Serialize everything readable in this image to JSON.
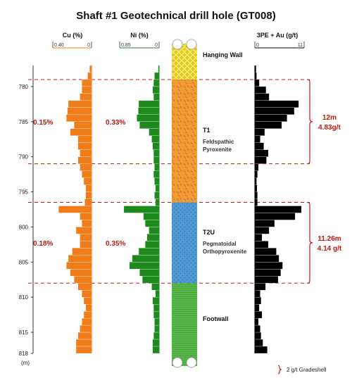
{
  "title": "Shaft #1 Geotechnical drill hole (GT008)",
  "depth_unit": "(m)",
  "colors": {
    "cu": "#f07d1a",
    "ni": "#1e8a1e",
    "pge": "#000000",
    "grade": "#c0190f",
    "t1": "#f29a36",
    "t2u": "#4f97d2",
    "footwall": "#58b94a",
    "hanging_wall": "#f3e14a"
  },
  "chart_data": {
    "type": "bar",
    "orientation": "horizontal",
    "depth_range": [
      777,
      818
    ],
    "depth_ticks": [
      780,
      785,
      790,
      795,
      800,
      805,
      810,
      815,
      818
    ],
    "depth": [
      777,
      778,
      779,
      780,
      781,
      782,
      783,
      784,
      785,
      786,
      787,
      788,
      789,
      790,
      791,
      792,
      793,
      794,
      795,
      796,
      797,
      798,
      799,
      800,
      801,
      802,
      803,
      804,
      805,
      806,
      807,
      808,
      809,
      810,
      811,
      812,
      813,
      814,
      815,
      816,
      817
    ],
    "series": [
      {
        "name": "Cu (%)",
        "range": [
          0.4,
          0
        ],
        "range_labels": [
          "0.40",
          "0"
        ],
        "values": [
          0.02,
          0.04,
          0.1,
          0.1,
          0.12,
          0.24,
          0.25,
          0.26,
          0.18,
          0.22,
          0.14,
          0.14,
          0.12,
          0.14,
          0.12,
          0.1,
          0.08,
          0.06,
          0.06,
          0.07,
          0.34,
          0.12,
          0.1,
          0.16,
          0.12,
          0.12,
          0.2,
          0.24,
          0.26,
          0.22,
          0.18,
          0.14,
          0.1,
          0.08,
          0.06,
          0.08,
          0.1,
          0.12,
          0.14,
          0.16,
          0.16
        ]
      },
      {
        "name": "Ni (%)",
        "range": [
          0.85,
          0
        ],
        "range_labels": [
          "0.85",
          "0"
        ],
        "values": [
          0.02,
          0.1,
          0.12,
          0.14,
          0.12,
          0.44,
          0.45,
          0.48,
          0.42,
          0.22,
          0.16,
          0.14,
          0.12,
          0.12,
          0.1,
          0.12,
          0.1,
          0.08,
          0.1,
          0.08,
          0.76,
          0.34,
          0.3,
          0.22,
          0.26,
          0.3,
          0.44,
          0.58,
          0.64,
          0.42,
          0.36,
          0.16,
          0.08,
          0.14,
          0.12,
          0.12,
          0.1,
          0.1,
          0.12,
          0.14,
          0.14
        ]
      },
      {
        "name": "3PE + Au (g/t)",
        "range": [
          0,
          11
        ],
        "range_labels": [
          "0",
          "11"
        ],
        "values": [
          0.3,
          0.4,
          1.0,
          2.5,
          3.2,
          9.8,
          8.8,
          7.2,
          6.0,
          2.2,
          1.2,
          2.0,
          3.0,
          2.6,
          0.8,
          0.6,
          0.4,
          0.5,
          0.6,
          0.6,
          10.4,
          9.0,
          4.4,
          3.2,
          1.6,
          3.0,
          4.8,
          5.4,
          6.2,
          5.8,
          5.2,
          2.4,
          1.2,
          1.4,
          1.0,
          1.6,
          0.8,
          1.2,
          1.4,
          1.8,
          2.8
        ]
      }
    ],
    "lithology": [
      {
        "name": "Hanging Wall",
        "from": 777,
        "to": 779,
        "color": "#f3e14a"
      },
      {
        "name": "T1",
        "desc": [
          "Feldspathic",
          "Pyroxenite"
        ],
        "from": 779,
        "to": 796.5,
        "color": "#f29a36"
      },
      {
        "name": "T2U",
        "desc": [
          "Pegmatoidal",
          "Orthopyroxenite"
        ],
        "from": 796.5,
        "to": 808,
        "color": "#4f97d2"
      },
      {
        "name": "Footwall",
        "from": 808,
        "to": 818,
        "color": "#58b94a"
      }
    ],
    "zone_boundaries": [
      779,
      791,
      796.5,
      808
    ],
    "zones": [
      {
        "from": 779,
        "to": 791,
        "cu_label": "0.15%",
        "ni_label": "0.33%",
        "width_label": "12m",
        "grade_label": "4.83g/t"
      },
      {
        "from": 796.5,
        "to": 808,
        "cu_label": "0.18%",
        "ni_label": "0.35%",
        "width_label": "11.26m",
        "grade_label": "4.14 g/t"
      }
    ],
    "legend": {
      "label": "2 g/t Gradeshell",
      "position": "bottom-right"
    }
  }
}
